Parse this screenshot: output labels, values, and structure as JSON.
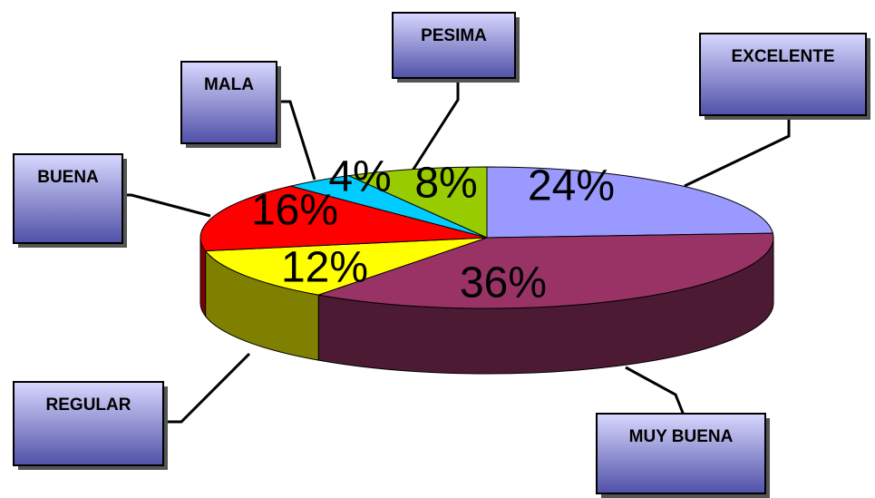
{
  "chart_data": {
    "type": "pie",
    "categories": [
      "EXCELENTE",
      "MUY BUENA",
      "REGULAR",
      "BUENA",
      "MALA",
      "PESIMA"
    ],
    "values": [
      24,
      36,
      12,
      16,
      4,
      8
    ],
    "value_labels": [
      "24%",
      "36%",
      "12%",
      "16%",
      "4%",
      "8%"
    ],
    "colors": [
      "#9999ff",
      "#993366",
      "#ffff00",
      "#ff0000",
      "#00ccff",
      "#99cc00"
    ]
  }
}
